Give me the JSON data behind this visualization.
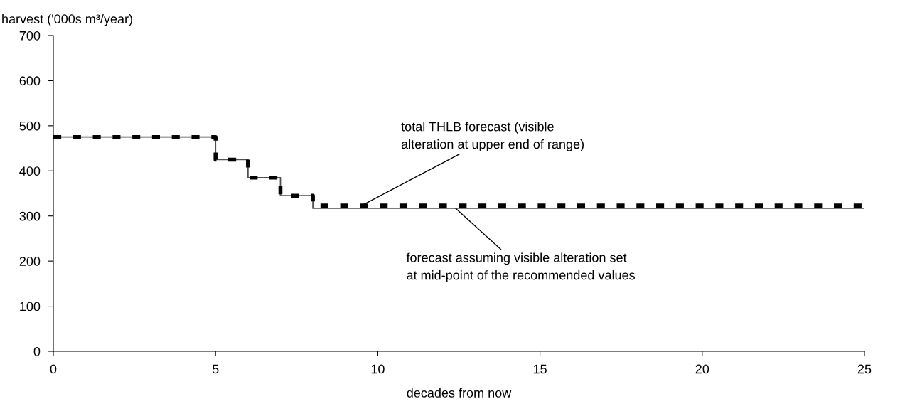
{
  "chart_data": {
    "type": "step",
    "xlabel": "decades from now",
    "ylabel": "harvest ('000s m³/year)",
    "x": [
      0,
      5,
      6,
      7,
      8,
      25
    ],
    "series": [
      {
        "color": "#505050",
        "line_style": "solid",
        "values": [
          475,
          425,
          385,
          345,
          317,
          317
        ]
      },
      {
        "color": "#000000",
        "line_style": "dashed",
        "values": [
          475,
          425,
          385,
          345,
          323,
          323
        ]
      }
    ],
    "xlim": [
      0,
      25
    ],
    "xticks": [
      0,
      5,
      10,
      15,
      20,
      25
    ],
    "ylim": [
      0,
      700
    ],
    "yticks": [
      0,
      100,
      200,
      300,
      400,
      500,
      600,
      700
    ],
    "grid": false,
    "marker": "none",
    "annotations": [
      {
        "text": "total THLB forecast (visible\nalteration at upper end of range)",
        "x": 9.5,
        "y": 323
      },
      {
        "text": "forecast assuming visible alteration set\nat mid-point of the recommended values",
        "x": 12.4,
        "y": 317
      }
    ]
  }
}
